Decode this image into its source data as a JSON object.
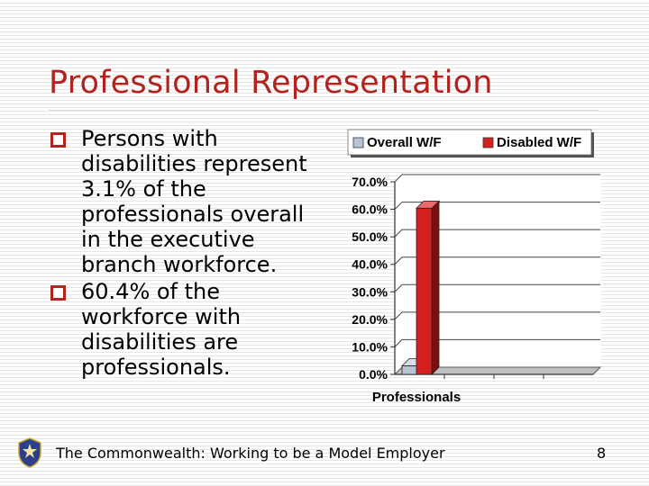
{
  "slide": {
    "title": "Professional Representation",
    "bullets": [
      "Persons with disabilities represent 3.1% of the professionals overall in the executive branch workforce.",
      "60.4% of the workforce with disabilities are professionals."
    ],
    "footer": "The Commonwealth: Working to be a Model Employer",
    "page_number": "8"
  },
  "colors": {
    "title": "#b3221d",
    "bullet": "#b3221d",
    "overall_series": "#b8c4d6",
    "disabled_series": "#d42020"
  },
  "icons": {
    "bullet": "hollow-square-bullet-icon",
    "seal": "state-seal-icon"
  },
  "chart_data": {
    "type": "bar",
    "categories": [
      "Professionals"
    ],
    "series": [
      {
        "name": "Overall W/F",
        "values": [
          3.1
        ]
      },
      {
        "name": "Disabled W/F",
        "values": [
          60.4
        ]
      }
    ],
    "yticks": [
      "0.0%",
      "10.0%",
      "20.0%",
      "30.0%",
      "40.0%",
      "50.0%",
      "60.0%",
      "70.0%"
    ],
    "ylim": [
      0,
      70
    ],
    "grid": true,
    "legend_position": "top",
    "three_d": true
  }
}
